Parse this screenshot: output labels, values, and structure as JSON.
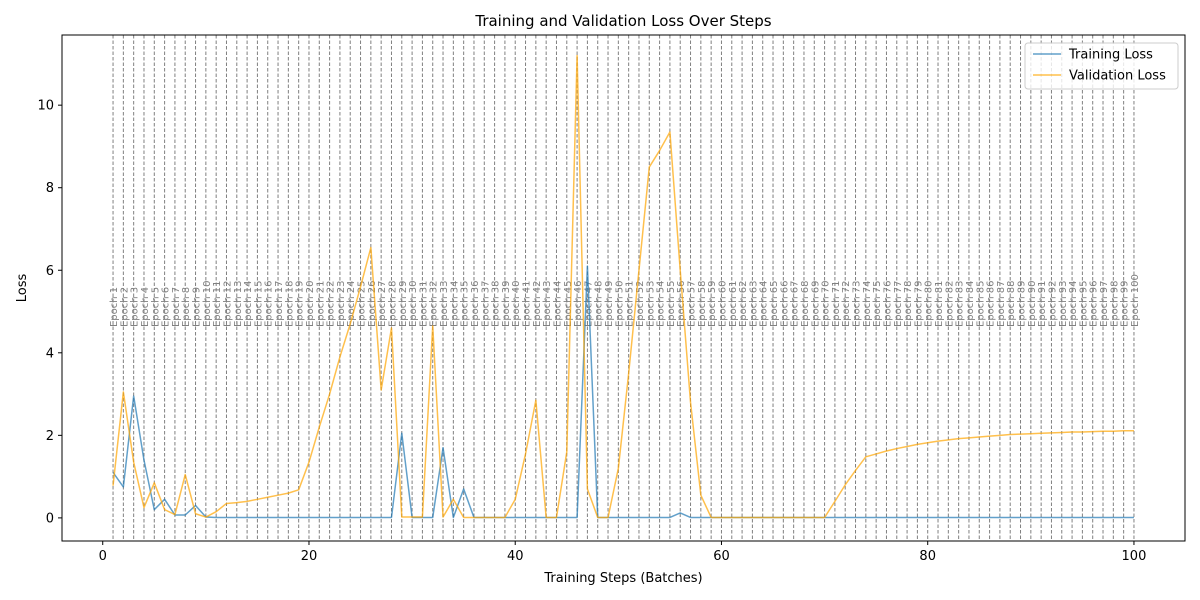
{
  "chart_data": {
    "type": "line",
    "title": "Training and Validation Loss Over Steps",
    "xlabel": "Training Steps (Batches)",
    "ylabel": "Loss",
    "xlim": [
      -3.95,
      104.95
    ],
    "ylim": [
      -0.56,
      11.7
    ],
    "xticks": [
      0,
      20,
      40,
      60,
      80,
      100
    ],
    "yticks": [
      0,
      2,
      4,
      6,
      8,
      10
    ],
    "grid": false,
    "legend_position": "top-right",
    "epoch_markers": {
      "x": [
        1,
        2,
        3,
        4,
        5,
        6,
        7,
        8,
        9,
        10,
        11,
        12,
        13,
        14,
        15,
        16,
        17,
        18,
        19,
        20,
        21,
        22,
        23,
        24,
        25,
        26,
        27,
        28,
        29,
        30,
        31,
        32,
        33,
        34,
        35,
        36,
        37,
        38,
        39,
        40,
        41,
        42,
        43,
        44,
        45,
        46,
        47,
        48,
        49,
        50,
        51,
        52,
        53,
        54,
        55,
        56,
        57,
        58,
        59,
        60,
        61,
        62,
        63,
        64,
        65,
        66,
        67,
        68,
        69,
        70,
        71,
        72,
        73,
        74,
        75,
        76,
        77,
        78,
        79,
        80,
        81,
        82,
        83,
        84,
        85,
        86,
        87,
        88,
        89,
        90,
        91,
        92,
        93,
        94,
        95,
        96,
        97,
        98,
        99,
        100
      ],
      "labels": [
        "Epoch 1",
        "Epoch 2",
        "Epoch 3",
        "Epoch 4",
        "Epoch 5",
        "Epoch 6",
        "Epoch 7",
        "Epoch 8",
        "Epoch 9",
        "Epoch 10",
        "Epoch 11",
        "Epoch 12",
        "Epoch 13",
        "Epoch 14",
        "Epoch 15",
        "Epoch 16",
        "Epoch 17",
        "Epoch 18",
        "Epoch 19",
        "Epoch 20",
        "Epoch 21",
        "Epoch 22",
        "Epoch 23",
        "Epoch 24",
        "Epoch 25",
        "Epoch 26",
        "Epoch 27",
        "Epoch 28",
        "Epoch 29",
        "Epoch 30",
        "Epoch 31",
        "Epoch 32",
        "Epoch 33",
        "Epoch 34",
        "Epoch 35",
        "Epoch 36",
        "Epoch 37",
        "Epoch 38",
        "Epoch 39",
        "Epoch 40",
        "Epoch 41",
        "Epoch 42",
        "Epoch 43",
        "Epoch 44",
        "Epoch 45",
        "Epoch 46",
        "Epoch 47",
        "Epoch 48",
        "Epoch 49",
        "Epoch 50",
        "Epoch 51",
        "Epoch 52",
        "Epoch 53",
        "Epoch 54",
        "Epoch 55",
        "Epoch 56",
        "Epoch 57",
        "Epoch 58",
        "Epoch 59",
        "Epoch 60",
        "Epoch 61",
        "Epoch 62",
        "Epoch 63",
        "Epoch 64",
        "Epoch 65",
        "Epoch 66",
        "Epoch 67",
        "Epoch 68",
        "Epoch 69",
        "Epoch 70",
        "Epoch 71",
        "Epoch 72",
        "Epoch 73",
        "Epoch 74",
        "Epoch 75",
        "Epoch 76",
        "Epoch 77",
        "Epoch 78",
        "Epoch 79",
        "Epoch 80",
        "Epoch 81",
        "Epoch 82",
        "Epoch 83",
        "Epoch 84",
        "Epoch 85",
        "Epoch 86",
        "Epoch 87",
        "Epoch 88",
        "Epoch 89",
        "Epoch 90",
        "Epoch 91",
        "Epoch 92",
        "Epoch 93",
        "Epoch 94",
        "Epoch 95",
        "Epoch 96",
        "Epoch 97",
        "Epoch 98",
        "Epoch 99",
        "Epoch 100"
      ],
      "color": "#808080"
    },
    "series": [
      {
        "name": "Training Loss",
        "color": "#1f77b4",
        "x": [
          1,
          2,
          3,
          4,
          5,
          6,
          7,
          8,
          9,
          10,
          11,
          12,
          13,
          14,
          15,
          16,
          17,
          18,
          19,
          20,
          21,
          22,
          23,
          24,
          25,
          26,
          27,
          28,
          29,
          30,
          31,
          32,
          33,
          34,
          35,
          36,
          37,
          38,
          39,
          40,
          41,
          42,
          43,
          44,
          45,
          46,
          47,
          48,
          49,
          50,
          51,
          52,
          53,
          54,
          55,
          56,
          57,
          58,
          59,
          60,
          61,
          62,
          63,
          64,
          65,
          66,
          67,
          68,
          69,
          70,
          71,
          72,
          73,
          74,
          75,
          76,
          77,
          78,
          79,
          80,
          81,
          82,
          83,
          84,
          85,
          86,
          87,
          88,
          89,
          90,
          91,
          92,
          93,
          94,
          95,
          96,
          97,
          98,
          99,
          100
        ],
        "values": [
          1.1,
          0.75,
          2.95,
          1.4,
          0.2,
          0.45,
          0.07,
          0.07,
          0.3,
          0.02,
          0.01,
          0.01,
          0.01,
          0.01,
          0.01,
          0.01,
          0.01,
          0.01,
          0.01,
          0.01,
          0.01,
          0.01,
          0.01,
          0.01,
          0.01,
          0.01,
          0.01,
          0.01,
          2.05,
          0.01,
          0.01,
          0.01,
          1.7,
          0.01,
          0.7,
          0.01,
          0.01,
          0.01,
          0.01,
          0.01,
          0.01,
          0.01,
          0.01,
          0.01,
          0.01,
          0.01,
          6.1,
          0.01,
          0.01,
          0.01,
          0.01,
          0.01,
          0.01,
          0.01,
          0.01,
          0.12,
          0.01,
          0.01,
          0.01,
          0.01,
          0.01,
          0.01,
          0.01,
          0.01,
          0.01,
          0.01,
          0.01,
          0.01,
          0.01,
          0.01,
          0.01,
          0.01,
          0.01,
          0.01,
          0.01,
          0.01,
          0.01,
          0.01,
          0.01,
          0.01,
          0.01,
          0.01,
          0.01,
          0.01,
          0.01,
          0.01,
          0.01,
          0.01,
          0.01,
          0.01,
          0.01,
          0.01,
          0.01,
          0.01,
          0.01,
          0.01,
          0.01,
          0.01,
          0.01,
          0.01
        ]
      },
      {
        "name": "Validation Loss",
        "color": "#ffa500",
        "x": [
          1,
          2,
          3,
          4,
          5,
          6,
          7,
          8,
          9,
          10,
          11,
          12,
          13,
          14,
          15,
          16,
          17,
          18,
          19,
          20,
          21,
          22,
          23,
          24,
          25,
          26,
          27,
          28,
          29,
          30,
          31,
          32,
          33,
          34,
          35,
          36,
          37,
          38,
          39,
          40,
          41,
          42,
          43,
          44,
          45,
          46,
          47,
          48,
          49,
          50,
          51,
          52,
          53,
          54,
          55,
          56,
          57,
          58,
          59,
          60,
          61,
          62,
          63,
          64,
          65,
          66,
          67,
          68,
          69,
          70,
          71,
          72,
          73,
          74,
          75,
          76,
          77,
          78,
          79,
          80,
          81,
          82,
          83,
          84,
          85,
          86,
          87,
          88,
          89,
          90,
          91,
          92,
          93,
          94,
          95,
          96,
          97,
          98,
          99,
          100
        ],
        "values": [
          0.78,
          3.05,
          1.35,
          0.25,
          0.85,
          0.2,
          0.08,
          1.05,
          0.1,
          0.02,
          0.15,
          0.35,
          0.37,
          0.4,
          0.45,
          0.5,
          0.55,
          0.6,
          0.68,
          1.35,
          2.2,
          3.0,
          3.9,
          4.7,
          5.6,
          6.55,
          3.1,
          4.6,
          0.02,
          0.02,
          0.02,
          4.65,
          0.02,
          0.45,
          0.01,
          0.01,
          0.01,
          0.01,
          0.01,
          0.45,
          1.55,
          2.85,
          0.01,
          0.01,
          1.6,
          11.2,
          0.7,
          0.01,
          0.01,
          1.2,
          3.5,
          6.0,
          8.5,
          8.9,
          9.35,
          6.0,
          2.8,
          0.55,
          0.01,
          0.01,
          0.01,
          0.01,
          0.01,
          0.01,
          0.01,
          0.01,
          0.01,
          0.01,
          0.01,
          0.01,
          0.4,
          0.8,
          1.15,
          1.48,
          1.55,
          1.62,
          1.68,
          1.73,
          1.78,
          1.82,
          1.86,
          1.89,
          1.92,
          1.94,
          1.96,
          1.98,
          2.0,
          2.02,
          2.03,
          2.04,
          2.05,
          2.06,
          2.07,
          2.08,
          2.08,
          2.09,
          2.1,
          2.1,
          2.11,
          2.11
        ]
      }
    ]
  }
}
